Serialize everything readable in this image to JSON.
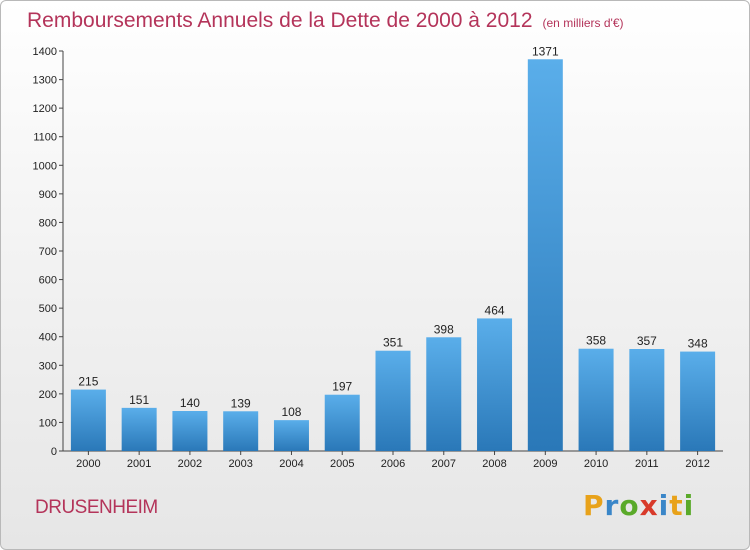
{
  "header": {
    "title": "Remboursements Annuels de la Dette de 2000 à 2012",
    "subtitle": "(en milliers d'€)"
  },
  "footer": {
    "town": "DRUSENHEIM",
    "logo": {
      "text": "Proxiti",
      "letters": [
        {
          "ch": "P",
          "color": "#e8a21a"
        },
        {
          "ch": "r",
          "color": "#3a86c8"
        },
        {
          "ch": "o",
          "color": "#5aaa2a"
        },
        {
          "ch": "x",
          "color": "#d83a2a"
        },
        {
          "ch": "i",
          "color": "#3a86c8"
        },
        {
          "ch": "t",
          "color": "#e8a21a"
        },
        {
          "ch": "i",
          "color": "#5aaa2a"
        }
      ]
    }
  },
  "chart_data": {
    "type": "bar",
    "categories": [
      "2000",
      "2001",
      "2002",
      "2003",
      "2004",
      "2005",
      "2006",
      "2007",
      "2008",
      "2009",
      "2010",
      "2011",
      "2012"
    ],
    "values": [
      215,
      151,
      140,
      139,
      108,
      197,
      351,
      398,
      464,
      1371,
      358,
      357,
      348
    ],
    "ylim": [
      0,
      1400
    ],
    "yticks": [
      0,
      100,
      200,
      300,
      400,
      500,
      600,
      700,
      800,
      900,
      1000,
      1100,
      1200,
      1300,
      1400
    ],
    "grid": false,
    "legend": "none",
    "colors": {
      "bar_top": "#5aaeea",
      "bar_bottom": "#2a78b8",
      "axis": "#444444",
      "text": "#222222"
    }
  }
}
